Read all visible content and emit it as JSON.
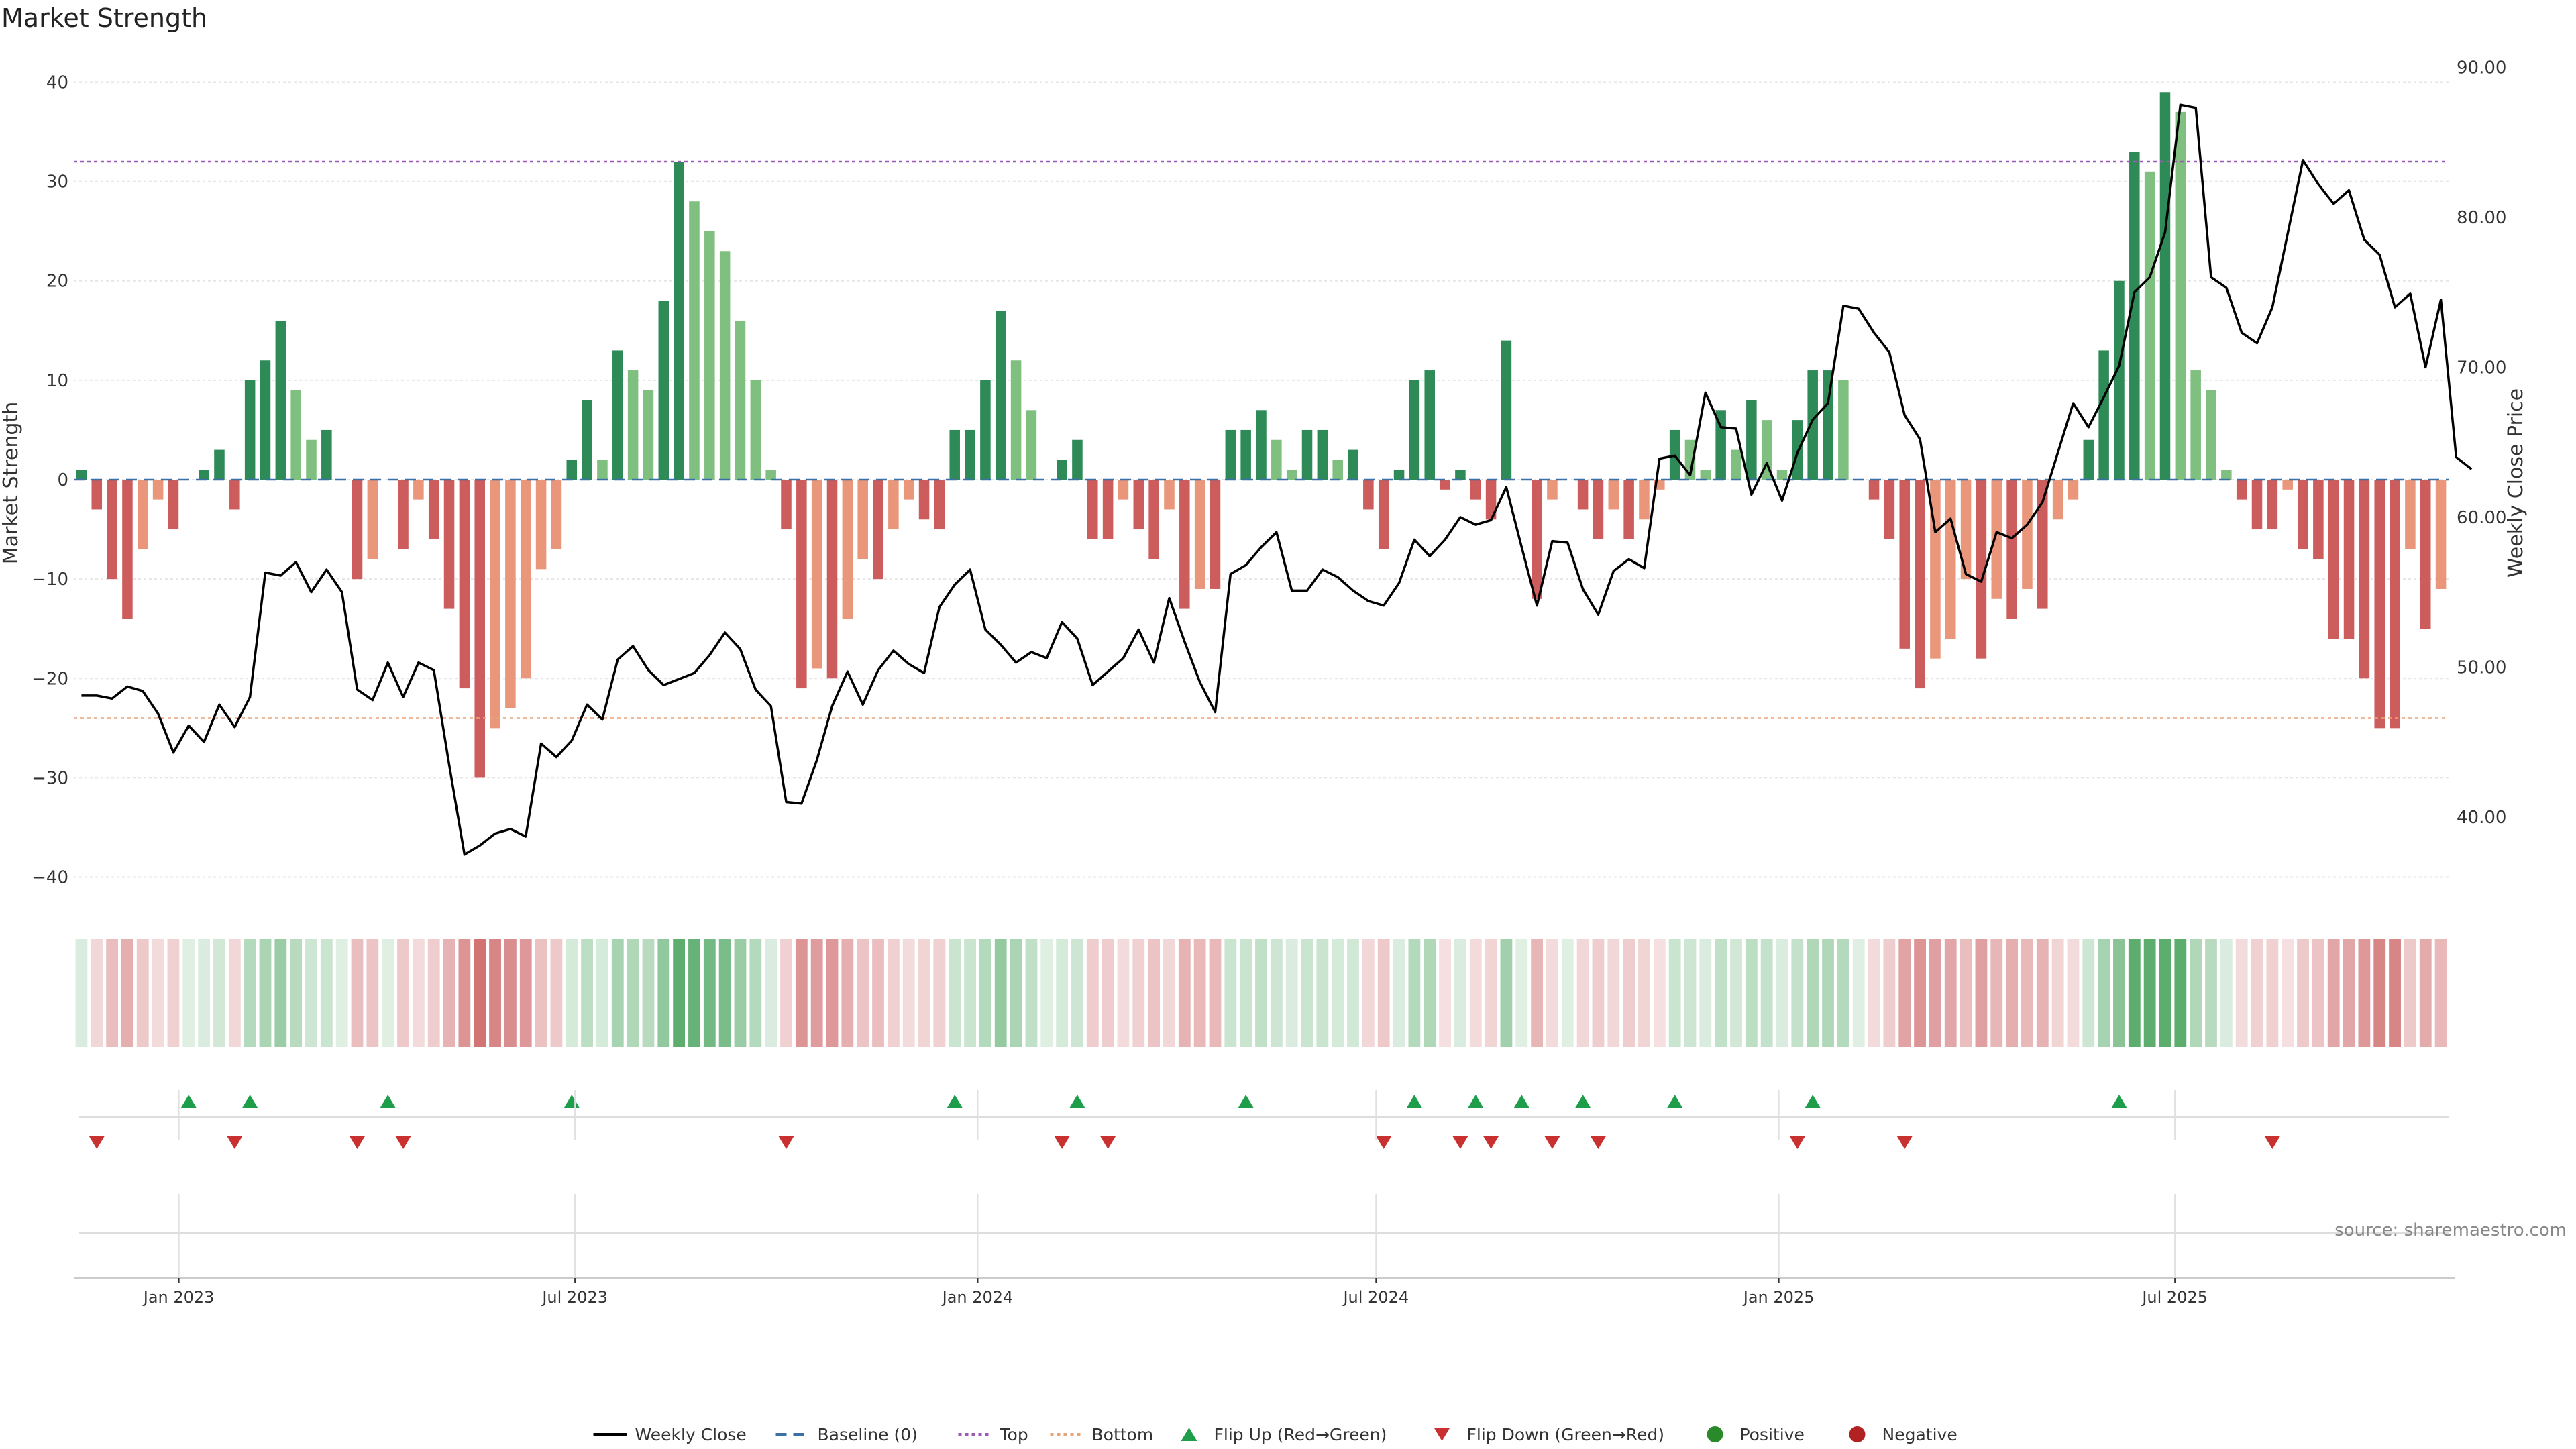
{
  "chart_data": {
    "type": "bar",
    "title": "Market Strength",
    "ylabel": "Market Strength",
    "y2label": "Weekly Close Price",
    "ylim": [
      -43,
      43
    ],
    "y2lim": [
      34,
      91
    ],
    "yticks": [
      40,
      30,
      20,
      10,
      0,
      -10,
      -20,
      -30,
      -40
    ],
    "y2ticks": [
      "90.00",
      "80.00",
      "70.00",
      "60.00",
      "50.00",
      "40.00"
    ],
    "y2tick_values": [
      90,
      80,
      70,
      60,
      50,
      40
    ],
    "top_line": 32,
    "bottom_line": -24,
    "x_start": "2022-11-14",
    "x_end": "2025-11-03",
    "date_ticks": [
      {
        "label": "Jan 2023",
        "date": "2023-01-01"
      },
      {
        "label": "Jul 2023",
        "date": "2023-07-01"
      },
      {
        "label": "Jan 2024",
        "date": "2024-01-01"
      },
      {
        "label": "Jul 2024",
        "date": "2024-07-01"
      },
      {
        "label": "Jan 2025",
        "date": "2025-01-01"
      },
      {
        "label": "Jul 2025",
        "date": "2025-07-01"
      }
    ],
    "strength": [
      1,
      -3,
      -10,
      -14,
      -7,
      -2,
      -5,
      0,
      1,
      3,
      -3,
      10,
      12,
      16,
      9,
      4,
      5,
      0,
      -10,
      -8,
      0,
      -7,
      -2,
      -6,
      -13,
      -21,
      -30,
      -25,
      -23,
      -20,
      -9,
      -7,
      2,
      8,
      2,
      13,
      11,
      9,
      18,
      32,
      28,
      25,
      23,
      16,
      10,
      1,
      -5,
      -21,
      -19,
      -20,
      -14,
      -8,
      -10,
      -5,
      -2,
      -4,
      -5,
      5,
      5,
      10,
      17,
      12,
      7,
      0,
      2,
      4,
      -6,
      -6,
      -2,
      -5,
      -8,
      -3,
      -13,
      -11,
      -11,
      5,
      5,
      7,
      4,
      1,
      5,
      5,
      2,
      3,
      -3,
      -7,
      1,
      10,
      11,
      -1,
      1,
      -2,
      -4,
      14,
      0,
      -12,
      -2,
      0,
      -3,
      -6,
      -3,
      -6,
      -4,
      -1,
      5,
      4,
      1,
      7,
      3,
      8,
      6,
      1,
      6,
      11,
      11,
      10,
      0,
      -2,
      -6,
      -17,
      -21,
      -18,
      -16,
      -10,
      -18,
      -12,
      -14,
      -11,
      -13,
      -4,
      -2,
      4,
      13,
      20,
      33,
      31,
      39,
      37,
      11,
      9,
      1,
      -2,
      -5,
      -5,
      -1,
      -7,
      -8,
      -16,
      -16,
      -20,
      -25,
      -25,
      -7,
      -15,
      -11
    ],
    "close": [
      48.1,
      48.1,
      47.9,
      48.7,
      48.4,
      46.9,
      44.3,
      46.1,
      45.0,
      47.5,
      46.0,
      48.0,
      56.3,
      56.1,
      57.0,
      55.0,
      56.5,
      55.0,
      48.5,
      47.8,
      50.3,
      48.0,
      50.3,
      49.8,
      43.5,
      37.5,
      38.1,
      38.9,
      39.2,
      38.7,
      44.9,
      44.0,
      45.1,
      47.5,
      46.5,
      50.5,
      51.4,
      49.8,
      48.8,
      49.2,
      49.6,
      50.8,
      52.3,
      51.2,
      48.5,
      47.4,
      41.0,
      40.9,
      43.8,
      47.4,
      49.7,
      47.5,
      49.8,
      51.1,
      50.2,
      49.6,
      54.0,
      55.5,
      56.5,
      52.5,
      51.5,
      50.3,
      51.0,
      50.6,
      53.0,
      51.9,
      48.8,
      49.7,
      50.6,
      52.5,
      50.3,
      54.6,
      51.7,
      49.0,
      47.0,
      56.2,
      56.8,
      58.0,
      59.0,
      55.1,
      55.1,
      56.5,
      56.0,
      55.1,
      54.4,
      54.1,
      55.6,
      58.5,
      57.4,
      58.5,
      60.0,
      59.5,
      59.8,
      62.0,
      58.0,
      54.1,
      58.4,
      58.3,
      55.2,
      53.5,
      56.4,
      57.2,
      56.6,
      63.9,
      64.1,
      62.8,
      68.3,
      66.0,
      65.9,
      61.5,
      63.6,
      61.1,
      64.3,
      66.5,
      67.6,
      74.1,
      73.9,
      72.3,
      71.0,
      66.8,
      65.2,
      59.0,
      59.9,
      56.2,
      55.7,
      59.0,
      58.6,
      59.5,
      61.0,
      64.3,
      67.6,
      66.0,
      68.0,
      70.1,
      75.0,
      76.0,
      79.0,
      87.5,
      87.3,
      76.0,
      75.3,
      72.3,
      71.6,
      74.0,
      78.9,
      83.8,
      82.2,
      80.9,
      81.8,
      78.5,
      77.5,
      74.0,
      74.9,
      70.0,
      74.5,
      64.0,
      63.2
    ],
    "flip_up_idx": [
      7,
      11,
      20,
      32,
      57,
      65,
      76,
      87,
      91,
      94,
      98,
      104,
      113,
      133
    ],
    "flip_down_idx": [
      1,
      10,
      18,
      21,
      46,
      64,
      67,
      85,
      90,
      92,
      96,
      99,
      112,
      119,
      143
    ],
    "legend": [
      {
        "label": "Weekly Close",
        "kind": "line",
        "color": "#000000"
      },
      {
        "label": "Baseline (0)",
        "kind": "dash",
        "color": "#3a6fa8"
      },
      {
        "label": "Top",
        "kind": "dot",
        "color": "#9b59b6"
      },
      {
        "label": "Bottom",
        "kind": "dot",
        "color": "#e8a37a"
      },
      {
        "label": "Flip Up (Red→Green)",
        "kind": "tri-up",
        "color": "#1e9e4a"
      },
      {
        "label": "Flip Down (Green→Red)",
        "kind": "tri-down",
        "color": "#c8312f"
      },
      {
        "label": "Positive",
        "kind": "circle",
        "color": "#2a8a2a"
      },
      {
        "label": "Negative",
        "kind": "circle",
        "color": "#b22222"
      }
    ],
    "source": "source: sharemaestro.com"
  }
}
